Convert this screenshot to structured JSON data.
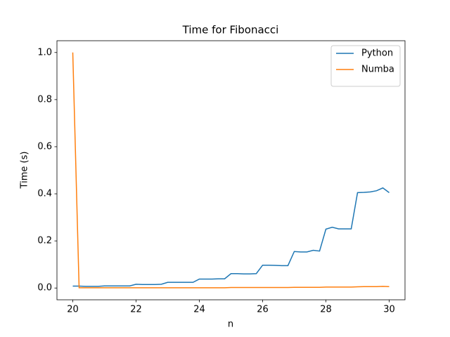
{
  "chart_data": {
    "type": "line",
    "title": "Time for Fibonacci",
    "x_label": "n",
    "y_label": "Time (s)",
    "x": [
      20.0,
      20.2,
      20.4,
      20.6,
      20.8,
      21.0,
      21.2,
      21.4,
      21.6,
      21.8,
      22.0,
      22.2,
      22.4,
      22.6,
      22.8,
      23.0,
      23.2,
      23.4,
      23.6,
      23.8,
      24.0,
      24.2,
      24.4,
      24.6,
      24.8,
      25.0,
      25.2,
      25.4,
      25.6,
      25.8,
      26.0,
      26.2,
      26.4,
      26.6,
      26.8,
      27.0,
      27.2,
      27.4,
      27.6,
      27.8,
      28.0,
      28.2,
      28.4,
      28.6,
      28.8,
      29.0,
      29.2,
      29.4,
      29.6,
      29.8,
      30.0
    ],
    "series": [
      {
        "name": "Python",
        "color": "#1f77b4",
        "values": [
          0.008,
          0.008,
          0.007,
          0.007,
          0.007,
          0.009,
          0.009,
          0.009,
          0.009,
          0.009,
          0.016,
          0.015,
          0.015,
          0.015,
          0.016,
          0.024,
          0.024,
          0.024,
          0.024,
          0.024,
          0.038,
          0.038,
          0.038,
          0.039,
          0.039,
          0.061,
          0.061,
          0.06,
          0.06,
          0.061,
          0.097,
          0.097,
          0.096,
          0.095,
          0.095,
          0.155,
          0.153,
          0.153,
          0.16,
          0.157,
          0.25,
          0.258,
          0.251,
          0.251,
          0.251,
          0.405,
          0.406,
          0.408,
          0.413,
          0.425,
          0.405
        ]
      },
      {
        "name": "Numba",
        "color": "#ff7f0e",
        "values": [
          1.0,
          0.001,
          0.001,
          0.001,
          0.001,
          0.001,
          0.001,
          0.001,
          0.001,
          0.001,
          0.001,
          0.001,
          0.001,
          0.001,
          0.001,
          0.001,
          0.001,
          0.001,
          0.001,
          0.001,
          0.001,
          0.001,
          0.001,
          0.001,
          0.001,
          0.002,
          0.002,
          0.002,
          0.002,
          0.002,
          0.002,
          0.002,
          0.002,
          0.002,
          0.002,
          0.003,
          0.003,
          0.003,
          0.003,
          0.003,
          0.004,
          0.004,
          0.004,
          0.004,
          0.004,
          0.005,
          0.006,
          0.006,
          0.006,
          0.007,
          0.006
        ]
      }
    ],
    "xlim": [
      19.5,
      30.5
    ],
    "ylim": [
      -0.05,
      1.05
    ],
    "xticks": [
      20,
      22,
      24,
      26,
      28,
      30
    ],
    "yticks": [
      {
        "value": 0,
        "label": "0.0"
      },
      {
        "value": 0.2,
        "label": "0.2"
      },
      {
        "value": 0.4,
        "label": "0.4"
      },
      {
        "value": 0.6,
        "label": "0.6"
      },
      {
        "value": 0.8,
        "label": "0.8"
      },
      {
        "value": 1,
        "label": "1.0"
      }
    ],
    "grid": false,
    "legend": "upper right"
  }
}
